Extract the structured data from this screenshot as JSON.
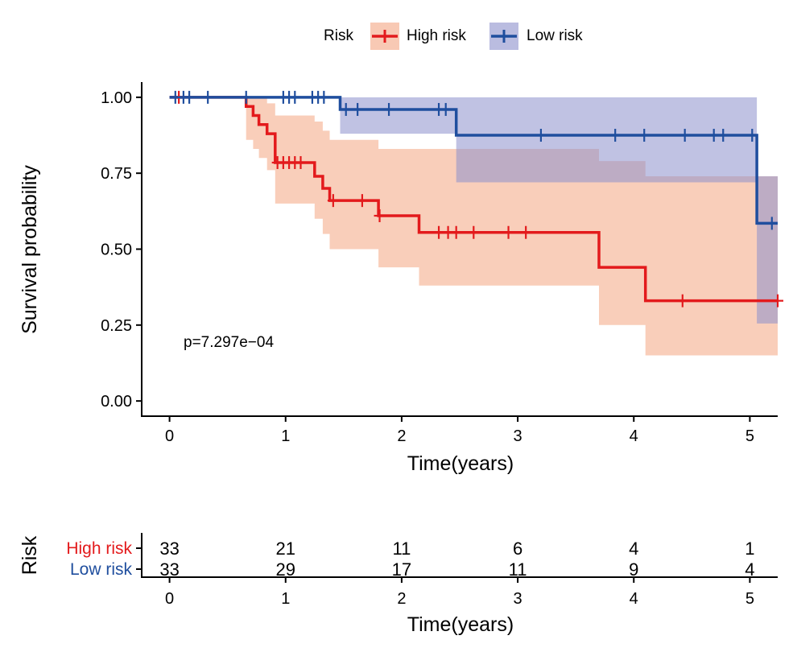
{
  "colors": {
    "high": "#E31A1C",
    "low": "#1F4E9E",
    "high_ci": "#F4A582",
    "low_ci": "#8C8FCC"
  },
  "legend": {
    "title": "Risk",
    "items": [
      "High risk",
      "Low risk"
    ]
  },
  "pvalue": "p=7.297e−04",
  "chart_data": [
    {
      "type": "line",
      "subtype": "kaplan-meier",
      "xlabel": "Time(years)",
      "ylabel": "Survival probability",
      "xlim": [
        -0.24,
        5.24
      ],
      "ylim": [
        -0.05,
        1.05
      ],
      "x_ticks": [
        0,
        1,
        2,
        3,
        4,
        5
      ],
      "x_tick_labels": [
        "0",
        "1",
        "2",
        "3",
        "4",
        "5"
      ],
      "y_ticks": [
        0,
        0.25,
        0.5,
        0.75,
        1
      ],
      "y_tick_labels": [
        "0.00",
        "0.25",
        "0.50",
        "0.75",
        "1.00"
      ],
      "legend_position": "top",
      "series": [
        {
          "name": "High risk",
          "step": [
            [
              0,
              1.0
            ],
            [
              0.66,
              0.97
            ],
            [
              0.72,
              0.94
            ],
            [
              0.77,
              0.91
            ],
            [
              0.84,
              0.88
            ],
            [
              0.91,
              0.785
            ],
            [
              1.25,
              0.74
            ],
            [
              1.32,
              0.7
            ],
            [
              1.38,
              0.66
            ],
            [
              1.8,
              0.61
            ],
            [
              2.15,
              0.555
            ],
            [
              3.7,
              0.44
            ],
            [
              4.1,
              0.33
            ],
            [
              5.24,
              0.33
            ]
          ],
          "ci": [
            [
              0,
              1.0,
              1.0
            ],
            [
              0.66,
              1.0,
              0.86
            ],
            [
              0.72,
              1.0,
              0.83
            ],
            [
              0.77,
              1.0,
              0.8
            ],
            [
              0.84,
              0.98,
              0.76
            ],
            [
              0.91,
              0.94,
              0.65
            ],
            [
              1.25,
              0.92,
              0.6
            ],
            [
              1.32,
              0.89,
              0.55
            ],
            [
              1.38,
              0.86,
              0.5
            ],
            [
              1.8,
              0.83,
              0.44
            ],
            [
              2.15,
              0.83,
              0.38
            ],
            [
              3.7,
              0.79,
              0.25
            ],
            [
              4.1,
              0.74,
              0.15
            ],
            [
              5.24,
              0.74,
              0.15
            ]
          ],
          "censor": [
            0.08,
            0.93,
            0.98,
            1.03,
            1.08,
            1.13,
            1.41,
            1.66,
            1.81,
            2.32,
            2.4,
            2.47,
            2.62,
            2.92,
            3.07,
            4.42,
            5.24
          ]
        },
        {
          "name": "Low risk",
          "step": [
            [
              0,
              1.0
            ],
            [
              1.47,
              0.96
            ],
            [
              2.47,
              0.875
            ],
            [
              5.06,
              0.585
            ],
            [
              5.24,
              0.585
            ]
          ],
          "ci": [
            [
              0,
              1.0,
              1.0
            ],
            [
              1.47,
              1.0,
              0.88
            ],
            [
              2.47,
              1.0,
              0.72
            ],
            [
              5.06,
              0.74,
              0.255
            ],
            [
              5.24,
              0.74,
              0.255
            ]
          ],
          "censor": [
            0.05,
            0.12,
            0.17,
            0.33,
            0.66,
            0.98,
            1.03,
            1.08,
            1.23,
            1.28,
            1.33,
            1.52,
            1.62,
            1.89,
            2.32,
            2.38,
            3.2,
            3.84,
            4.09,
            4.44,
            4.69,
            4.77,
            5.02,
            5.19
          ]
        }
      ]
    },
    {
      "type": "table",
      "title": "Risk",
      "xlabel": "Time(years)",
      "x_ticks": [
        0,
        1,
        2,
        3,
        4,
        5
      ],
      "x_tick_labels": [
        "0",
        "1",
        "2",
        "3",
        "4",
        "5"
      ],
      "rows": [
        {
          "label": "High risk",
          "values": [
            "33",
            "21",
            "11",
            "6",
            "4",
            "1"
          ]
        },
        {
          "label": "Low risk",
          "values": [
            "33",
            "29",
            "17",
            "11",
            "9",
            "4"
          ]
        }
      ]
    }
  ]
}
